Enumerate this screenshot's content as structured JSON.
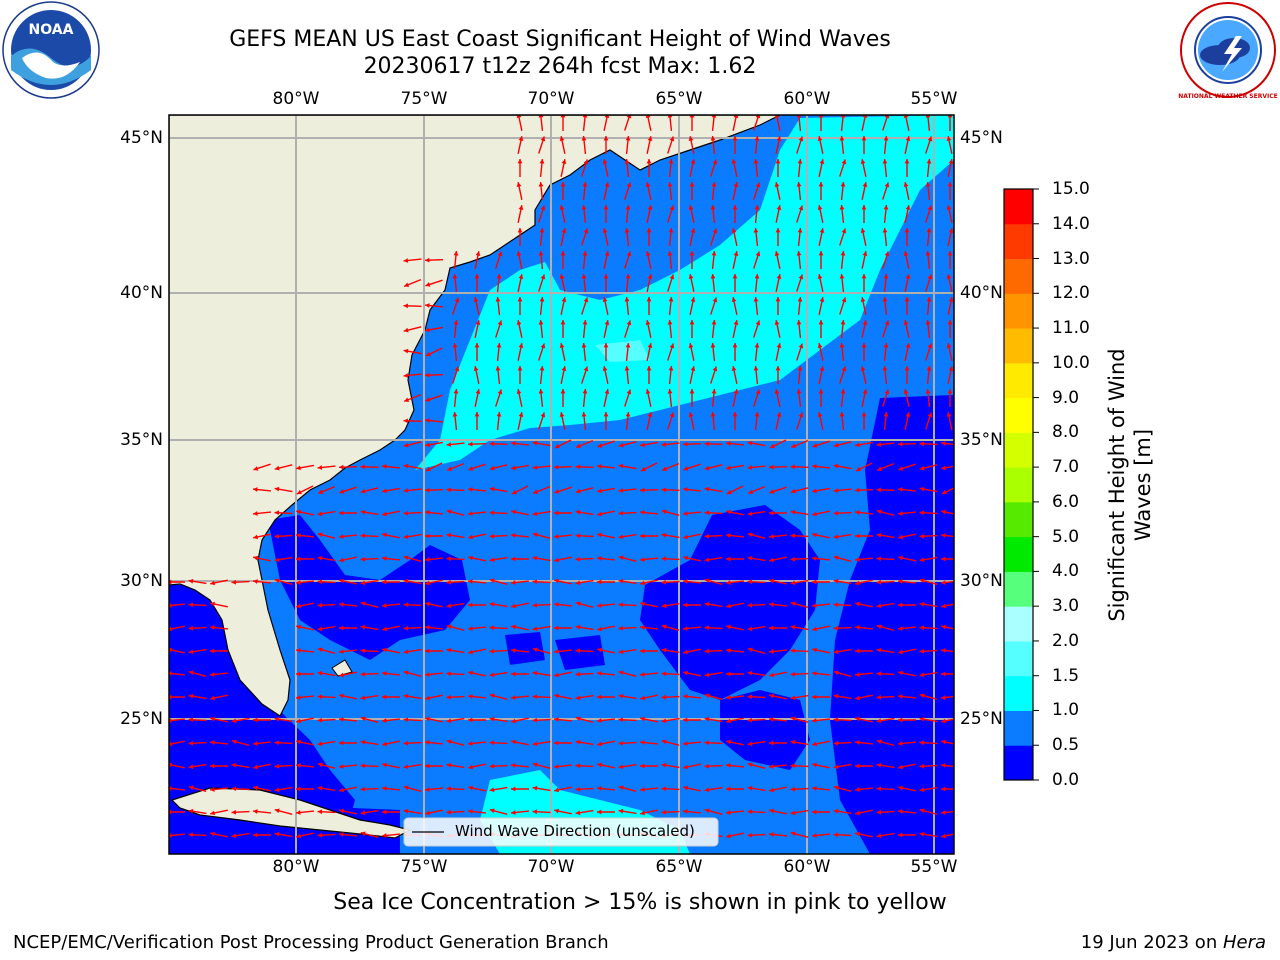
{
  "title": {
    "line1": "GEFS MEAN US East Coast Significant Height of Wind Waves",
    "line2": "20230617 t12z 264h fcst   Max: 1.62"
  },
  "logos": {
    "left": {
      "icon": "noaa-logo",
      "text": "NOAA"
    },
    "right": {
      "icon": "nws-logo",
      "text": "NATIONAL WEATHER SERVICE"
    }
  },
  "map": {
    "lon_labels": [
      "80°W",
      "75°W",
      "70°W",
      "65°W",
      "60°W",
      "55°W"
    ],
    "lat_labels": [
      "45°N",
      "40°N",
      "35°N",
      "30°N",
      "25°N"
    ],
    "lon_range": [
      -85,
      -54.5
    ],
    "lat_range": [
      20.5,
      46
    ],
    "legend_text": "Wind Wave Direction (unscaled)",
    "colors": {
      "land": "#eeeedc",
      "bin_0_0_5": "#0000ff",
      "bin_0_5_1_0": "#0b7cff",
      "bin_1_0_1_5": "#00ffff",
      "bin_1_5_2_0": "#56ffff",
      "arrows": "#ff0000"
    }
  },
  "colorbar": {
    "label": "Significant Height of Wind Waves [m]",
    "ticks": [
      "0.0",
      "0.5",
      "1.0",
      "1.5",
      "2.0",
      "3.0",
      "4.0",
      "5.0",
      "6.0",
      "7.0",
      "8.0",
      "9.0",
      "10.0",
      "11.0",
      "12.0",
      "13.0",
      "14.0",
      "15.0"
    ],
    "colors": [
      "#0000ff",
      "#0b7cff",
      "#00ffff",
      "#56ffff",
      "#aaffff",
      "#56ff7c",
      "#00ea00",
      "#56ea00",
      "#aaff00",
      "#d4ff00",
      "#ffff00",
      "#ffea00",
      "#ffbb00",
      "#ff9400",
      "#ff6a00",
      "#ff3a00",
      "#ff0000"
    ]
  },
  "note": "Sea Ice Concentration > 15% is shown in pink to yellow",
  "footer": {
    "left": "NCEP/EMC/Verification Post Processing Product Generation Branch",
    "right_date": "19 Jun 2023 on ",
    "right_machine": "Hera"
  }
}
